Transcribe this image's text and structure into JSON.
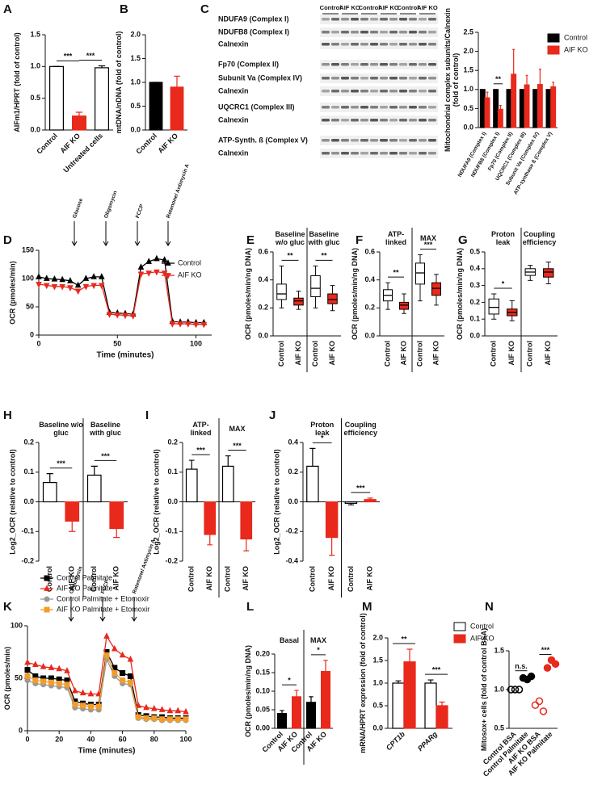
{
  "blot": {
    "panel": "C",
    "lanes": [
      "Control",
      "AIF KO",
      "Control",
      "AIF KO",
      "Control",
      "AIF KO"
    ],
    "rows": [
      "NDUFA9 (Complex I)",
      "NDUFB8 (Complex I)",
      "Calnexin",
      "Fp70 (Complex II)",
      "Subunit Va (Complex IV)",
      "Calnexin",
      "UQCRC1 (Complex III)",
      "Calnexin",
      "ATP-Synth. ß (Complex V)",
      "Calnexin"
    ]
  },
  "chart_data": [
    {
      "type": "bar",
      "panel": "A",
      "y_label": "AIFm1/HPRT (fold of control)",
      "categories": [
        "Control",
        "AIF KO",
        "Untreated cells"
      ],
      "values": [
        1.0,
        0.22,
        0.98
      ],
      "errors": [
        0,
        0.06,
        0.03
      ],
      "colors": [
        "#ffffff",
        "#e8291c",
        "#ffffff"
      ],
      "ylim": [
        0,
        1.5
      ],
      "yticks": [
        {
          "value": 0,
          "label": "0.0"
        },
        0.5,
        {
          "value": 1,
          "label": "1.0"
        },
        1.5
      ],
      "annotations": [
        "***",
        "***"
      ]
    },
    {
      "type": "bar",
      "panel": "B",
      "y_label": "mtDNA/nDNA (fold of control)",
      "categories": [
        "Control",
        "AIF KO"
      ],
      "values": [
        1.0,
        0.9
      ],
      "errors": [
        0,
        0.23
      ],
      "colors": [
        "#000000",
        "#e8291c"
      ],
      "ylim": [
        0,
        2
      ],
      "yticks": [
        {
          "value": 0,
          "label": "0.0"
        },
        0.5,
        {
          "value": 1,
          "label": "1.0"
        },
        1.5,
        {
          "value": 2,
          "label": "2.0"
        }
      ]
    },
    {
      "type": "bar",
      "y_label": "Mitochondrial complex subunits/Calnexin (fold of control)",
      "categories": [
        "NDUFA9 (Complex I)",
        "NDUFB8 (Complex I)",
        "Fp70 (Complex II)",
        "UQCRC1 (Complex III)",
        "Subunit Va (Complex IV)",
        "ATP-synthase ß (Complex V)"
      ],
      "series": [
        {
          "name": "Control",
          "color": "#000000",
          "values": [
            1,
            1,
            1,
            1,
            1,
            1
          ]
        },
        {
          "name": "AIF KO",
          "color": "#e8291c",
          "values": [
            0.78,
            0.48,
            1.4,
            1.12,
            1.13,
            1.07
          ],
          "errors": [
            0.15,
            0.1,
            0.65,
            0.25,
            0.4,
            0.12
          ]
        }
      ],
      "ylim": [
        0,
        2.5
      ],
      "yticks": [
        {
          "value": 0,
          "label": "0.0"
        },
        0.5,
        {
          "value": 1,
          "label": "1.0"
        },
        1.5,
        {
          "value": 2,
          "label": "2.0"
        },
        2.5
      ],
      "annotations": [
        "**"
      ]
    },
    {
      "type": "line",
      "panel": "D",
      "y_label": "OCR (pmoles/min)",
      "x_label": "Time (minutes)",
      "x": [
        0,
        5,
        10,
        15,
        20,
        25,
        30,
        35,
        40,
        45,
        50,
        55,
        60,
        65,
        70,
        75,
        80,
        85,
        90,
        95,
        100,
        105
      ],
      "series": [
        {
          "name": "Control",
          "color": "#000000",
          "marker": "triangle",
          "values": [
            103,
            100,
            99,
            98,
            96,
            88,
            100,
            103,
            103,
            40,
            39,
            38,
            37,
            120,
            130,
            135,
            133,
            24,
            23,
            23,
            22,
            22
          ]
        },
        {
          "name": "AIF KO",
          "color": "#e8291c",
          "marker": "triangle-down",
          "values": [
            90,
            88,
            86,
            86,
            84,
            78,
            86,
            88,
            88,
            37,
            36,
            35,
            34,
            108,
            110,
            112,
            110,
            20,
            20,
            20,
            19,
            19
          ]
        }
      ],
      "xlim": [
        0,
        110
      ],
      "xticks": [
        0,
        50,
        100
      ],
      "ylim": [
        0,
        150
      ],
      "yticks": [
        0,
        50,
        100,
        150
      ],
      "annotations": [
        "Glucose",
        "Oligomycin",
        "FCCP",
        "Rotenone/ Antimycin A"
      ]
    },
    {
      "type": "box",
      "panel": "E",
      "y_label": "OCR (pmoles/min/ng DNA)",
      "groups": [
        "Baseline w/o gluc",
        "Baseline with gluc"
      ],
      "categories": [
        "Control",
        "AIF KO",
        "Control",
        "AIF KO"
      ],
      "colors": [
        "#ffffff",
        "#e8291c",
        "#ffffff",
        "#e8291c"
      ],
      "boxes": [
        [
          0.2,
          0.26,
          0.3,
          0.37,
          0.5
        ],
        [
          0.19,
          0.22,
          0.25,
          0.27,
          0.32
        ],
        [
          0.2,
          0.28,
          0.34,
          0.43,
          0.5
        ],
        [
          0.18,
          0.23,
          0.26,
          0.3,
          0.36
        ]
      ],
      "ylim": [
        0,
        0.6
      ],
      "yticks": [
        {
          "value": 0,
          "label": "0.0"
        },
        0.2,
        0.4,
        0.6
      ],
      "annotations": [
        "**",
        "**"
      ]
    },
    {
      "type": "box",
      "panel": "F",
      "y_label": "OCR (pmoles/min/ng DNA)",
      "groups": [
        "ATP-linked",
        "MAX"
      ],
      "categories": [
        "Control",
        "AIF KO",
        "Control",
        "AIF KO"
      ],
      "colors": [
        "#ffffff",
        "#e8291c",
        "#ffffff",
        "#e8291c"
      ],
      "boxes": [
        [
          0.19,
          0.25,
          0.29,
          0.33,
          0.38
        ],
        [
          0.16,
          0.19,
          0.22,
          0.24,
          0.3
        ],
        [
          0.25,
          0.37,
          0.45,
          0.52,
          0.58
        ],
        [
          0.22,
          0.29,
          0.34,
          0.38,
          0.44
        ]
      ],
      "ylim": [
        0,
        0.6
      ],
      "yticks": [
        {
          "value": 0,
          "label": "0.0"
        },
        0.2,
        0.4,
        0.6
      ],
      "annotations": [
        "**",
        "***"
      ]
    },
    {
      "type": "box",
      "panel": "G",
      "y_label": "OCR (pmoles/min/ng DNA)",
      "groups": [
        "Proton leak",
        "Coupling efficiency"
      ],
      "categories": [
        "Control",
        "AIF KO",
        "Control",
        "AIF KO"
      ],
      "colors": [
        "#ffffff",
        "#e8291c",
        "#ffffff",
        "#e8291c"
      ],
      "boxes": [
        [
          0.1,
          0.13,
          0.17,
          0.22,
          0.25
        ],
        [
          0.09,
          0.12,
          0.14,
          0.16,
          0.21
        ],
        [
          0.33,
          0.36,
          0.38,
          0.4,
          0.42
        ],
        [
          0.31,
          0.35,
          0.38,
          0.4,
          0.44
        ]
      ],
      "ylim": [
        0,
        0.5
      ],
      "yticks": [
        {
          "value": 0,
          "label": "0.0"
        },
        0.1,
        0.2,
        0.3,
        0.4,
        0.5
      ],
      "annotations": [
        "*"
      ]
    },
    {
      "type": "bar",
      "panel": "H",
      "y_label": "Log2_OCR (relative to control)",
      "groups": [
        "Baseline w/o gluc",
        "Baseline with gluc"
      ],
      "categories": [
        "Control",
        "AIF KO",
        "Control",
        "AIF KO"
      ],
      "colors": [
        "#ffffff",
        "#e8291c",
        "#ffffff",
        "#e8291c"
      ],
      "values": [
        0.065,
        -0.065,
        0.09,
        -0.09
      ],
      "errors": [
        0.03,
        0.035,
        0.03,
        0.03
      ],
      "ylim": [
        -0.2,
        0.2
      ],
      "yticks": [
        -0.2,
        -0.1,
        {
          "value": 0,
          "label": "0.0"
        },
        0.1,
        0.2
      ],
      "annotations": [
        "***",
        "***"
      ]
    },
    {
      "type": "bar",
      "panel": "I",
      "y_label": "Log2_OCR (relative to control)",
      "groups": [
        "ATP-linked",
        "MAX"
      ],
      "categories": [
        "Control",
        "AIF KO",
        "Control",
        "AIF KO"
      ],
      "colors": [
        "#ffffff",
        "#e8291c",
        "#ffffff",
        "#e8291c"
      ],
      "values": [
        0.11,
        -0.11,
        0.12,
        -0.125
      ],
      "errors": [
        0.03,
        0.035,
        0.035,
        0.04
      ],
      "ylim": [
        -0.2,
        0.2
      ],
      "yticks": [
        -0.2,
        -0.1,
        {
          "value": 0,
          "label": "0.0"
        },
        0.1,
        0.2
      ],
      "annotations": [
        "***",
        "***"
      ]
    },
    {
      "type": "bar",
      "panel": "J",
      "y_label": "Log2_OCR (relative to control)",
      "groups": [
        "Proton leak",
        "Coupling efficiency"
      ],
      "categories": [
        "Control",
        "AIF KO",
        "Control",
        "AIF KO"
      ],
      "colors": [
        "#ffffff",
        "#e8291c",
        "#ffffff",
        "#e8291c"
      ],
      "values": [
        0.24,
        -0.24,
        -0.01,
        0.015
      ],
      "errors": [
        0.12,
        0.12,
        0.01,
        0.01
      ],
      "ylim": [
        -0.4,
        0.4
      ],
      "yticks": [
        -0.4,
        -0.2,
        {
          "value": 0,
          "label": "0.0"
        },
        0.2,
        0.4
      ],
      "annotations": [
        "*",
        "***"
      ]
    },
    {
      "type": "line",
      "panel": "K",
      "y_label": "OCR (pmoles/min)",
      "x_label": "Time (minutes)",
      "x": [
        0,
        5,
        10,
        15,
        20,
        25,
        30,
        35,
        40,
        45,
        50,
        55,
        60,
        65,
        70,
        75,
        80,
        85,
        90,
        95,
        100
      ],
      "series": [
        {
          "name": "Control Palmitate",
          "color": "#000000",
          "marker": "square",
          "values": [
            58,
            52,
            50,
            50,
            49,
            48,
            28,
            26,
            25,
            25,
            75,
            60,
            55,
            52,
            15,
            14,
            13,
            13,
            12,
            12,
            12
          ]
        },
        {
          "name": "AIF KO Palmitate",
          "color": "#e8291c",
          "marker": "triangle",
          "values": [
            65,
            63,
            61,
            60,
            59,
            57,
            38,
            36,
            35,
            35,
            90,
            78,
            72,
            68,
            24,
            22,
            21,
            20,
            19,
            19,
            18
          ]
        },
        {
          "name": "Control Palmitate + Etomoxir",
          "color": "#999999",
          "marker": "circle",
          "values": [
            48,
            45,
            44,
            43,
            42,
            41,
            22,
            21,
            20,
            20,
            68,
            52,
            45,
            44,
            12,
            11,
            11,
            10,
            10,
            10,
            10
          ]
        },
        {
          "name": "AIF KO Palmitate + Etomoxir",
          "color": "#f39c2b",
          "marker": "square",
          "values": [
            52,
            48,
            47,
            46,
            45,
            44,
            25,
            24,
            23,
            23,
            72,
            55,
            48,
            46,
            13,
            12,
            12,
            11,
            11,
            11,
            11
          ]
        }
      ],
      "xlim": [
        0,
        100
      ],
      "xticks": [
        0,
        20,
        40,
        60,
        80,
        100
      ],
      "ylim": [
        0,
        100
      ],
      "yticks": [
        0,
        50,
        100
      ],
      "annotations": [
        "Oligomycin",
        "FCCP",
        "Rotenone/ Antimycin A"
      ]
    },
    {
      "type": "bar",
      "panel": "L",
      "y_label": "OCR (pmoles/min/ng DNA)",
      "groups": [
        "Basal",
        "MAX"
      ],
      "categories": [
        "Control",
        "AIF KO",
        "Control",
        "AIF KO"
      ],
      "colors": [
        "#000000",
        "#e8291c",
        "#000000",
        "#e8291c"
      ],
      "values": [
        0.04,
        0.085,
        0.07,
        0.153
      ],
      "errors": [
        0.008,
        0.017,
        0.015,
        0.03
      ],
      "ylim": [
        0,
        0.2
      ],
      "yticks": [
        {
          "value": 0,
          "label": "0.00"
        },
        0.05,
        {
          "value": 0.1,
          "label": "0.10"
        },
        0.15,
        {
          "value": 0.2,
          "label": "0.20"
        }
      ],
      "annotations": [
        "*",
        "*"
      ]
    },
    {
      "type": "bar",
      "panel": "M",
      "y_label": "mRNA/HPRT expression (fold of control)",
      "categories": [
        "CPT1b",
        "PPARg"
      ],
      "italic": true,
      "series": [
        {
          "name": "Control",
          "color": "#ffffff",
          "values": [
            1.0,
            1.0
          ],
          "errors": [
            0.05,
            0.07
          ]
        },
        {
          "name": "AIF KO",
          "color": "#e8291c",
          "values": [
            1.47,
            0.5
          ],
          "errors": [
            0.28,
            0.08
          ]
        }
      ],
      "ylim": [
        0,
        2
      ],
      "yticks": [
        {
          "value": 0,
          "label": "0.0"
        },
        0.5,
        {
          "value": 1,
          "label": "1.0"
        },
        1.5,
        {
          "value": 2,
          "label": "2.0"
        }
      ],
      "annotations": [
        "**",
        "***"
      ]
    },
    {
      "type": "dot",
      "panel": "N",
      "y_label": "Mitosox+ cells (fold of control BSA)",
      "categories": [
        "Control BSA",
        "Control Palmitate",
        "AIF KO BSA",
        "AIF KO Palmitate"
      ],
      "colors": [
        "#000000",
        "#000000",
        "#e8291c",
        "#e8291c"
      ],
      "fills": [
        "none",
        "#000000",
        "none",
        "#e8291c"
      ],
      "points": [
        [
          1.0,
          1.0,
          1.0
        ],
        [
          1.15,
          1.17,
          1.13
        ],
        [
          0.8,
          0.72,
          0.85
        ],
        [
          1.28,
          1.33,
          1.38
        ]
      ],
      "ylim": [
        0.5,
        1.5
      ],
      "yticks": [
        0.5,
        {
          "value": 1,
          "label": "1.0"
        },
        1.5
      ],
      "annotations": [
        "n.s.",
        "***"
      ]
    }
  ]
}
